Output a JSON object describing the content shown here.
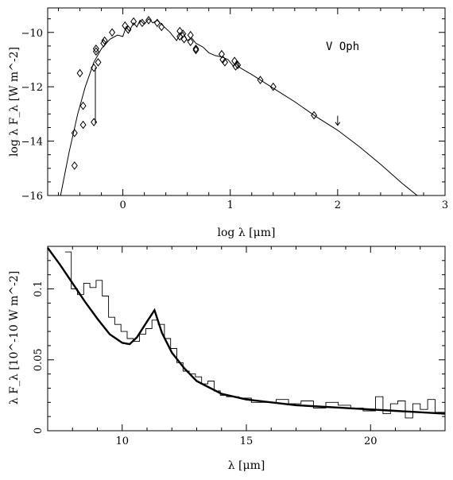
{
  "chart_data": [
    {
      "type": "scatter",
      "annotation": "V Oph",
      "xlabel": "log λ [μm]",
      "ylabel": "log λ F_λ [W m^-2]",
      "xlim": [
        -0.7,
        3.0
      ],
      "ylim": [
        -16,
        -9.1
      ],
      "xticks": [
        0,
        1,
        2,
        3
      ],
      "xticklabels": [
        "0",
        "1",
        "2",
        "3"
      ],
      "yticks": [
        -10,
        -12,
        -14,
        -16
      ],
      "yticklabels": [
        "−10",
        "−12",
        "−14",
        "−16"
      ],
      "series": [
        {
          "role": "observations",
          "marker": "diamond",
          "points": [
            [
              -0.45,
              -13.7
            ],
            [
              -0.45,
              -14.9
            ],
            [
              -0.4,
              -11.5
            ],
            [
              -0.37,
              -12.7
            ],
            [
              -0.37,
              -13.4
            ],
            [
              -0.27,
              -11.3
            ],
            [
              -0.27,
              -13.3
            ],
            [
              -0.25,
              -10.7
            ],
            [
              -0.25,
              -10.6
            ],
            [
              -0.23,
              -11.1
            ],
            [
              -0.18,
              -10.4
            ],
            [
              -0.17,
              -10.3
            ],
            [
              -0.1,
              -10.0
            ],
            [
              0.02,
              -9.75
            ],
            [
              0.05,
              -9.9
            ],
            [
              0.1,
              -9.6
            ],
            [
              0.18,
              -9.65
            ],
            [
              0.24,
              -9.55
            ],
            [
              0.32,
              -9.65
            ],
            [
              0.36,
              -9.8
            ],
            [
              0.53,
              -9.95
            ],
            [
              0.53,
              -10.15
            ],
            [
              0.56,
              -10.05
            ],
            [
              0.57,
              -10.25
            ],
            [
              0.63,
              -10.1
            ],
            [
              0.63,
              -10.35
            ],
            [
              0.68,
              -10.6
            ],
            [
              0.68,
              -10.65
            ],
            [
              0.92,
              -10.8
            ],
            [
              0.93,
              -11.0
            ],
            [
              0.95,
              -11.1
            ],
            [
              1.04,
              -11.05
            ],
            [
              1.05,
              -11.25
            ],
            [
              1.07,
              -11.2
            ],
            [
              1.28,
              -11.75
            ],
            [
              1.4,
              -12.0
            ],
            [
              1.78,
              -13.05
            ]
          ]
        },
        {
          "role": "upper-limit",
          "marker": "arrow-down",
          "points": [
            [
              2.0,
              -13.3
            ]
          ]
        },
        {
          "role": "model",
          "line": [
            [
              -0.58,
              -16.0
            ],
            [
              -0.5,
              -14.4
            ],
            [
              -0.42,
              -13.0
            ],
            [
              -0.35,
              -12.0
            ],
            [
              -0.27,
              -11.1
            ],
            [
              -0.2,
              -10.6
            ],
            [
              -0.12,
              -10.25
            ],
            [
              -0.05,
              -10.1
            ],
            [
              0.0,
              -10.15
            ],
            [
              0.03,
              -9.8
            ],
            [
              0.06,
              -9.95
            ],
            [
              0.1,
              -9.65
            ],
            [
              0.13,
              -9.8
            ],
            [
              0.16,
              -9.55
            ],
            [
              0.2,
              -9.7
            ],
            [
              0.24,
              -9.5
            ],
            [
              0.28,
              -9.65
            ],
            [
              0.32,
              -9.55
            ],
            [
              0.36,
              -9.7
            ],
            [
              0.4,
              -9.85
            ],
            [
              0.44,
              -10.0
            ],
            [
              0.47,
              -10.15
            ],
            [
              0.5,
              -10.3
            ],
            [
              0.53,
              -10.1
            ],
            [
              0.56,
              -10.0
            ],
            [
              0.6,
              -10.3
            ],
            [
              0.64,
              -10.2
            ],
            [
              0.68,
              -10.4
            ],
            [
              0.75,
              -10.55
            ],
            [
              0.8,
              -10.75
            ],
            [
              0.86,
              -10.85
            ],
            [
              0.92,
              -10.9
            ],
            [
              0.98,
              -11.0
            ],
            [
              1.03,
              -11.25
            ],
            [
              1.06,
              -11.05
            ],
            [
              1.09,
              -11.3
            ],
            [
              1.2,
              -11.55
            ],
            [
              1.4,
              -12.05
            ],
            [
              1.6,
              -12.55
            ],
            [
              1.8,
              -13.1
            ],
            [
              2.0,
              -13.6
            ],
            [
              2.2,
              -14.2
            ],
            [
              2.4,
              -14.85
            ],
            [
              2.6,
              -15.55
            ],
            [
              2.74,
              -16.0
            ]
          ]
        }
      ]
    },
    {
      "type": "line",
      "xlabel": "λ [μm]",
      "ylabel": "λ F_λ [10^-10 W m^-2]",
      "xlim": [
        7.0,
        23.0
      ],
      "ylim": [
        0.0,
        0.13
      ],
      "xticks": [
        10,
        15,
        20
      ],
      "xticklabels": [
        "10",
        "15",
        "20"
      ],
      "yticks": [
        0,
        0.05,
        0.1
      ],
      "yticklabels": [
        "0",
        "0.05",
        "0.1"
      ],
      "series": [
        {
          "role": "model-thick",
          "x": [
            7.0,
            7.5,
            8.0,
            8.5,
            9.0,
            9.5,
            10.0,
            10.3,
            10.6,
            11.0,
            11.3,
            11.6,
            12.0,
            12.5,
            13.0,
            14.0,
            15.0,
            17.0,
            19.0,
            21.0,
            23.0
          ],
          "y": [
            0.129,
            0.117,
            0.104,
            0.091,
            0.079,
            0.068,
            0.062,
            0.061,
            0.066,
            0.077,
            0.085,
            0.069,
            0.055,
            0.044,
            0.035,
            0.026,
            0.022,
            0.018,
            0.016,
            0.014,
            0.012
          ]
        },
        {
          "role": "spectrum-histogram",
          "x": [
            7.7,
            7.95,
            8.2,
            8.45,
            8.7,
            8.95,
            9.2,
            9.45,
            9.7,
            9.95,
            10.2,
            10.45,
            10.7,
            10.95,
            11.2,
            11.45,
            11.7,
            11.95,
            12.2,
            12.45,
            12.7,
            12.95,
            13.2,
            13.45,
            13.7,
            13.95,
            14.2,
            14.7,
            15.2,
            15.7,
            16.2,
            16.7,
            17.2,
            17.7,
            18.2,
            18.7,
            19.2,
            19.7,
            20.2,
            20.5,
            20.8,
            21.1,
            21.4,
            21.7,
            22.0,
            22.3,
            22.6,
            23.0
          ],
          "y": [
            0.126,
            0.1,
            0.096,
            0.104,
            0.101,
            0.106,
            0.095,
            0.08,
            0.075,
            0.07,
            0.065,
            0.063,
            0.068,
            0.072,
            0.078,
            0.075,
            0.065,
            0.058,
            0.048,
            0.042,
            0.04,
            0.038,
            0.033,
            0.035,
            0.028,
            0.025,
            0.024,
            0.023,
            0.02,
            0.02,
            0.022,
            0.019,
            0.021,
            0.016,
            0.02,
            0.018,
            0.016,
            0.014,
            0.024,
            0.012,
            0.019,
            0.021,
            0.009,
            0.019,
            0.015,
            0.022,
            0.013,
            0.012
          ]
        }
      ]
    }
  ]
}
